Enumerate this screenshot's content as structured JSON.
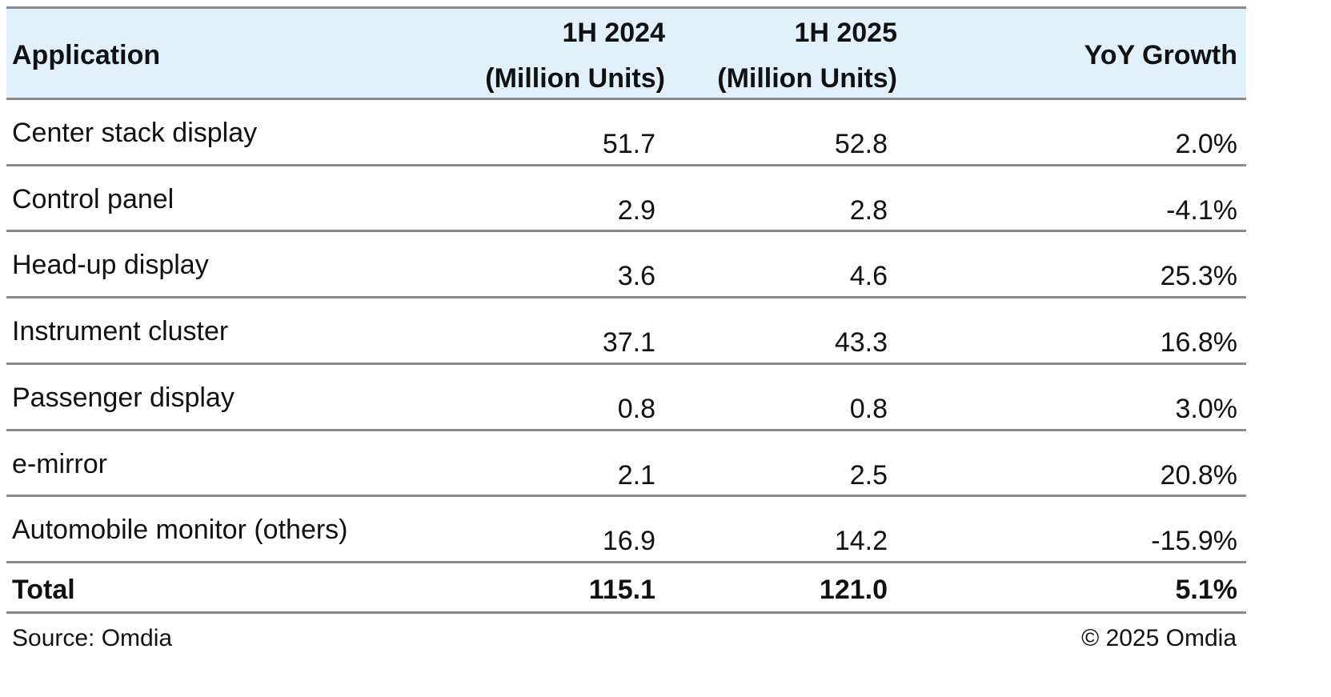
{
  "table": {
    "header": [
      [
        "Application"
      ],
      [
        "1H 2024",
        "(Million Units)"
      ],
      [
        "1H 2025",
        "(Million Units)"
      ],
      [
        "YoY Growth"
      ]
    ],
    "rows": [
      [
        "Center stack display",
        "51.7",
        "52.8",
        "2.0%"
      ],
      [
        "Control panel",
        "2.9",
        "2.8",
        "-4.1%"
      ],
      [
        "Head-up display",
        "3.6",
        "4.6",
        "25.3%"
      ],
      [
        "Instrument cluster",
        "37.1",
        "43.3",
        "16.8%"
      ],
      [
        "Passenger display",
        "0.8",
        "0.8",
        "3.0%"
      ],
      [
        "e-mirror",
        "2.1",
        "2.5",
        "20.8%"
      ],
      [
        "Automobile monitor (others)",
        "16.9",
        "14.2",
        "-15.9%"
      ]
    ],
    "total": [
      "Total",
      "115.1",
      "121.0",
      "5.1%"
    ]
  },
  "footer": {
    "source": "Source: Omdia",
    "copyright": "© 2025 Omdia"
  }
}
